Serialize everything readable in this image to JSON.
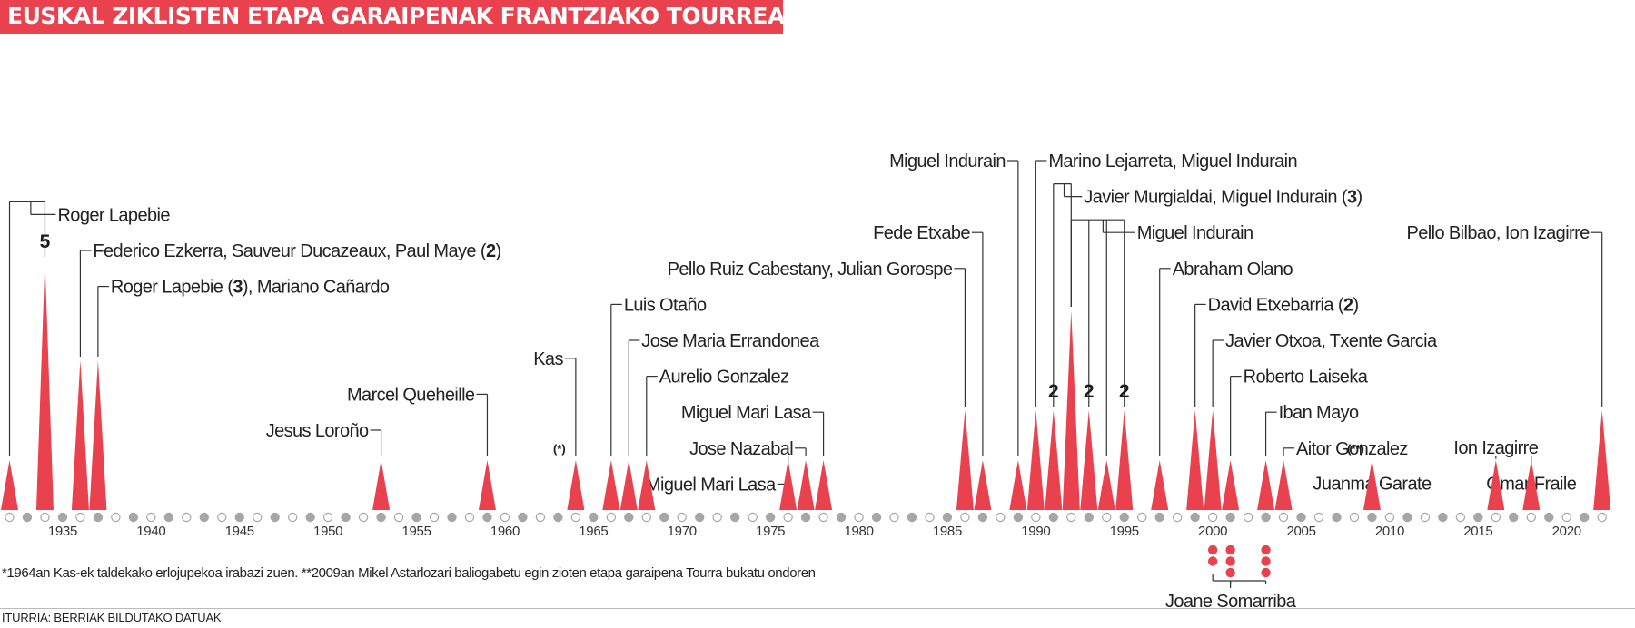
{
  "title": "EUSKAL ZIKLISTEN ETAPA GARAIPENAK FRANTZIAKO TOURREAN",
  "footnote": "*1964an Kas-ek taldekako erlojupekoa irabazi zuen. **2009an Mikel Astarlozari baliogabetu egin zioten etapa garaipena Tourra bukatu ondoren",
  "source": "ITURRIA: BERRIAK BILDUTAKO DATUAK",
  "colors": {
    "accent": "#e9414d",
    "grey_dot": "#a6a6a6",
    "line": "#333333",
    "text": "#222222"
  },
  "chart_data": {
    "type": "bar",
    "title": "EUSKAL ZIKLISTEN ETAPA GARAIPENAK FRANTZIAKO TOURREAN",
    "xlim": [
      1932,
      2022
    ],
    "ticks": [
      1935,
      1940,
      1945,
      1950,
      1955,
      1960,
      1965,
      1970,
      1975,
      1980,
      1985,
      1990,
      1995,
      2000,
      2005,
      2010,
      2015,
      2020
    ],
    "bars": [
      {
        "year": 1932,
        "value": 1
      },
      {
        "year": 1934,
        "value": 5,
        "value_label": "5"
      },
      {
        "year": 1936,
        "value": 3
      },
      {
        "year": 1937,
        "value": 3
      },
      {
        "year": 1953,
        "value": 1
      },
      {
        "year": 1959,
        "value": 1
      },
      {
        "year": 1964,
        "value": 1,
        "mark": "(*)"
      },
      {
        "year": 1966,
        "value": 1
      },
      {
        "year": 1967,
        "value": 1
      },
      {
        "year": 1968,
        "value": 1
      },
      {
        "year": 1976,
        "value": 1
      },
      {
        "year": 1977,
        "value": 1
      },
      {
        "year": 1978,
        "value": 1
      },
      {
        "year": 1986,
        "value": 2
      },
      {
        "year": 1987,
        "value": 1
      },
      {
        "year": 1989,
        "value": 1
      },
      {
        "year": 1990,
        "value": 2
      },
      {
        "year": 1991,
        "value": 2,
        "value_label": "2"
      },
      {
        "year": 1992,
        "value": 4
      },
      {
        "year": 1993,
        "value": 2,
        "value_label": "2"
      },
      {
        "year": 1994,
        "value": 1
      },
      {
        "year": 1995,
        "value": 2,
        "value_label": "2"
      },
      {
        "year": 1997,
        "value": 1
      },
      {
        "year": 1999,
        "value": 2
      },
      {
        "year": 2000,
        "value": 2
      },
      {
        "year": 2001,
        "value": 1
      },
      {
        "year": 2003,
        "value": 1
      },
      {
        "year": 2004,
        "value": 1
      },
      {
        "year": 2009,
        "value": 1,
        "mark": "(**)"
      },
      {
        "year": 2016,
        "value": 1
      },
      {
        "year": 2018,
        "value": 1
      },
      {
        "year": 2022,
        "value": 2
      }
    ],
    "labels": [
      {
        "text": "Roger Lapebie",
        "bold": "",
        "suffix": "",
        "years": [
          1932,
          1934
        ],
        "align": "start",
        "row": 4
      },
      {
        "text": "Federico Ezkerra, Sauveur Ducazeaux, Paul Maye (",
        "bold": "2",
        "suffix": ")",
        "years": [
          1936
        ],
        "align": "start",
        "row": 5
      },
      {
        "text": "Roger Lapebie (",
        "bold": "3",
        "suffix": "), Mariano Cañardo",
        "years": [
          1937
        ],
        "align": "start",
        "row": 6
      },
      {
        "text": "Jesus Loroño",
        "bold": "",
        "suffix": "",
        "years": [
          1953
        ],
        "align": "end",
        "row": 10
      },
      {
        "text": "Marcel Queheille",
        "bold": "",
        "suffix": "",
        "years": [
          1959
        ],
        "align": "end",
        "row": 9
      },
      {
        "text": "Kas",
        "bold": "",
        "suffix": "",
        "years": [
          1964
        ],
        "align": "end",
        "row": 8
      },
      {
        "text": "Luis Otaño",
        "bold": "",
        "suffix": "",
        "years": [
          1966
        ],
        "align": "start",
        "row": 6.5
      },
      {
        "text": "Jose Maria Errandonea",
        "bold": "",
        "suffix": "",
        "years": [
          1967
        ],
        "align": "start",
        "row": 7.5
      },
      {
        "text": "Aurelio Gonzalez",
        "bold": "",
        "suffix": "",
        "years": [
          1968
        ],
        "align": "start",
        "row": 8.5
      },
      {
        "text": "Miguel Mari Lasa",
        "bold": "",
        "suffix": "",
        "years": [
          1976
        ],
        "align": "end",
        "row": 11.5
      },
      {
        "text": "Jose Nazabal",
        "bold": "",
        "suffix": "",
        "years": [
          1977
        ],
        "align": "end",
        "row": 10.5
      },
      {
        "text": "Miguel Mari Lasa",
        "bold": "",
        "suffix": "",
        "years": [
          1978
        ],
        "align": "end",
        "row": 9.5
      },
      {
        "text": "Pello Ruiz Cabestany, Julian Gorospe",
        "bold": "",
        "suffix": "",
        "years": [
          1986
        ],
        "align": "end",
        "row": 5.5
      },
      {
        "text": "Fede Etxabe",
        "bold": "",
        "suffix": "",
        "years": [
          1987
        ],
        "align": "end",
        "row": 4.5
      },
      {
        "text": "Miguel Indurain",
        "bold": "",
        "suffix": "",
        "years": [
          1989
        ],
        "align": "end",
        "row": 2.5
      },
      {
        "text": "Marino Lejarreta, Miguel Indurain",
        "bold": "",
        "suffix": "",
        "years": [
          1990
        ],
        "align": "start",
        "row": 2.5
      },
      {
        "text": "Javier Murgialdai, Miguel Indurain (",
        "bold": "3",
        "suffix": ")",
        "years": [
          1991,
          1992
        ],
        "align": "start",
        "row": 3.5
      },
      {
        "text": "Miguel Indurain",
        "bold": "",
        "suffix": "",
        "years": [
          1992,
          1993,
          1994,
          1995
        ],
        "align": "start",
        "row": 4.5
      },
      {
        "text": "Abraham Olano",
        "bold": "",
        "suffix": "",
        "years": [
          1997
        ],
        "align": "start",
        "row": 5.5
      },
      {
        "text": "David Etxebarria (",
        "bold": "2",
        "suffix": ")",
        "years": [
          1999
        ],
        "align": "start",
        "row": 6.5
      },
      {
        "text": "Javier Otxoa, Txente Garcia",
        "bold": "",
        "suffix": "",
        "years": [
          2000
        ],
        "align": "start",
        "row": 7.5
      },
      {
        "text": "Roberto Laiseka",
        "bold": "",
        "suffix": "",
        "years": [
          2001
        ],
        "align": "start",
        "row": 8.5
      },
      {
        "text": "Iban Mayo",
        "bold": "",
        "suffix": "",
        "years": [
          2003
        ],
        "align": "start",
        "row": 9.5
      },
      {
        "text": "Aitor Gonzalez",
        "bold": "",
        "suffix": "",
        "years": [
          2004
        ],
        "align": "start",
        "row": 10.5
      },
      {
        "text": "Juanma Garate",
        "bold": "",
        "suffix": "",
        "years": [],
        "align": "middle",
        "row": 11.5,
        "anchor_year": 2009
      },
      {
        "text": "Ion Izagirre",
        "bold": "",
        "suffix": "",
        "years": [
          2016
        ],
        "align": "middle",
        "row": 10.5
      },
      {
        "text": "Omar Fraile",
        "bold": "",
        "suffix": "",
        "years": [
          2018
        ],
        "align": "middle",
        "row": 11.5
      },
      {
        "text": "Pello Bilbao, Ion Izagirre",
        "bold": "",
        "suffix": "",
        "years": [
          2022
        ],
        "align": "end",
        "row": 4.5
      }
    ],
    "women": {
      "name": "Joane Somarriba",
      "wins": [
        {
          "year": 2000,
          "count": 2
        },
        {
          "year": 2001,
          "count": 3
        },
        {
          "year": 2003,
          "count": 3
        }
      ]
    }
  }
}
